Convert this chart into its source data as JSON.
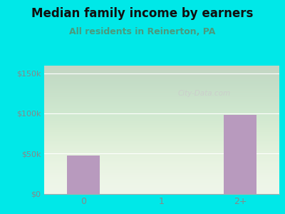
{
  "title": "Median family income by earners",
  "subtitle": "All residents in Reinerton, PA",
  "categories": [
    "0",
    "1",
    "2+"
  ],
  "values": [
    48000,
    0,
    98000
  ],
  "bar_color": "#b89abe",
  "background_color": "#00e8e8",
  "plot_bg_color": "#eef5e8",
  "title_fontsize": 12,
  "subtitle_fontsize": 9,
  "title_color": "#111111",
  "subtitle_color": "#4a9a7e",
  "tick_color": "#888888",
  "ylim": [
    0,
    160000
  ],
  "yticks": [
    0,
    50000,
    100000,
    150000
  ],
  "ytick_labels": [
    "$0",
    "$50k",
    "$100k",
    "$150k"
  ],
  "watermark": "City-Data.com"
}
